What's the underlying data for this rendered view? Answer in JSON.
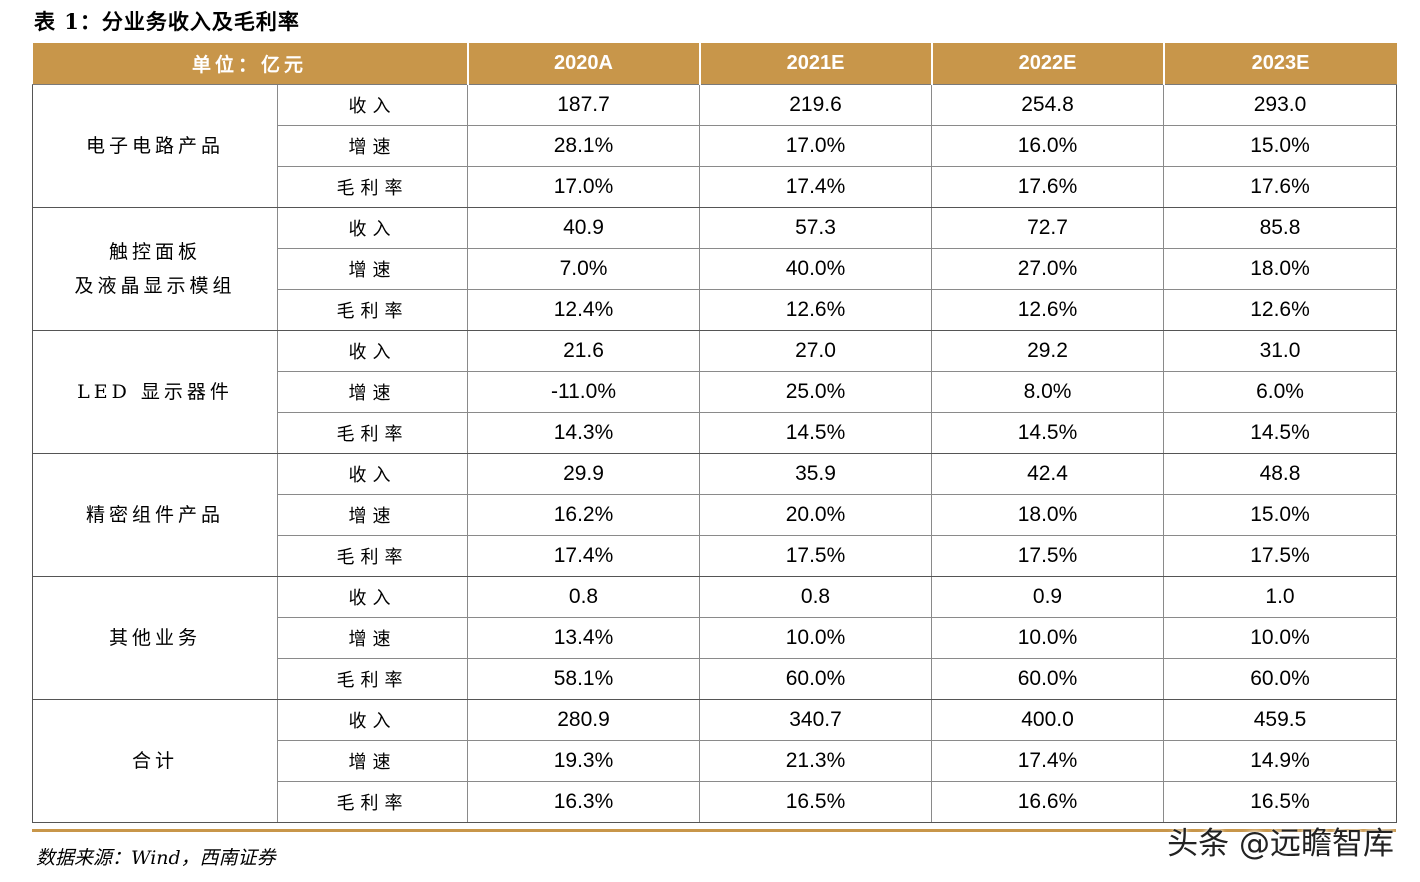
{
  "title": "表 1：分业务收入及毛利率",
  "header": {
    "unit_label": "单位：亿元",
    "years": [
      "2020A",
      "2021E",
      "2022E",
      "2023E"
    ]
  },
  "segments": [
    {
      "name_lines": [
        "电子电路产品"
      ],
      "rows": [
        {
          "metric": "收入",
          "values": [
            "187.7",
            "219.6",
            "254.8",
            "293.0"
          ]
        },
        {
          "metric": "增速",
          "values": [
            "28.1%",
            "17.0%",
            "16.0%",
            "15.0%"
          ]
        },
        {
          "metric": "毛利率",
          "values": [
            "17.0%",
            "17.4%",
            "17.6%",
            "17.6%"
          ]
        }
      ]
    },
    {
      "name_lines": [
        "触控面板",
        "及液晶显示模组"
      ],
      "rows": [
        {
          "metric": "收入",
          "values": [
            "40.9",
            "57.3",
            "72.7",
            "85.8"
          ]
        },
        {
          "metric": "增速",
          "values": [
            "7.0%",
            "40.0%",
            "27.0%",
            "18.0%"
          ]
        },
        {
          "metric": "毛利率",
          "values": [
            "12.4%",
            "12.6%",
            "12.6%",
            "12.6%"
          ]
        }
      ]
    },
    {
      "name_lines": [
        "LED 显示器件"
      ],
      "rows": [
        {
          "metric": "收入",
          "values": [
            "21.6",
            "27.0",
            "29.2",
            "31.0"
          ]
        },
        {
          "metric": "增速",
          "values": [
            "-11.0%",
            "25.0%",
            "8.0%",
            "6.0%"
          ]
        },
        {
          "metric": "毛利率",
          "values": [
            "14.3%",
            "14.5%",
            "14.5%",
            "14.5%"
          ]
        }
      ]
    },
    {
      "name_lines": [
        "精密组件产品"
      ],
      "rows": [
        {
          "metric": "收入",
          "values": [
            "29.9",
            "35.9",
            "42.4",
            "48.8"
          ]
        },
        {
          "metric": "增速",
          "values": [
            "16.2%",
            "20.0%",
            "18.0%",
            "15.0%"
          ]
        },
        {
          "metric": "毛利率",
          "values": [
            "17.4%",
            "17.5%",
            "17.5%",
            "17.5%"
          ]
        }
      ]
    },
    {
      "name_lines": [
        "其他业务"
      ],
      "rows": [
        {
          "metric": "收入",
          "values": [
            "0.8",
            "0.8",
            "0.9",
            "1.0"
          ]
        },
        {
          "metric": "增速",
          "values": [
            "13.4%",
            "10.0%",
            "10.0%",
            "10.0%"
          ]
        },
        {
          "metric": "毛利率",
          "values": [
            "58.1%",
            "60.0%",
            "60.0%",
            "60.0%"
          ]
        }
      ]
    },
    {
      "name_lines": [
        "合计"
      ],
      "rows": [
        {
          "metric": "收入",
          "values": [
            "280.9",
            "340.7",
            "400.0",
            "459.5"
          ]
        },
        {
          "metric": "增速",
          "values": [
            "19.3%",
            "21.3%",
            "17.4%",
            "14.9%"
          ]
        },
        {
          "metric": "毛利率",
          "values": [
            "16.3%",
            "16.5%",
            "16.6%",
            "16.5%"
          ]
        }
      ]
    }
  ],
  "source": "数据来源：Wind，西南证券",
  "watermark": "头条 @远瞻智库",
  "colors": {
    "header_bg": "#c8964a",
    "header_text": "#ffffff"
  }
}
